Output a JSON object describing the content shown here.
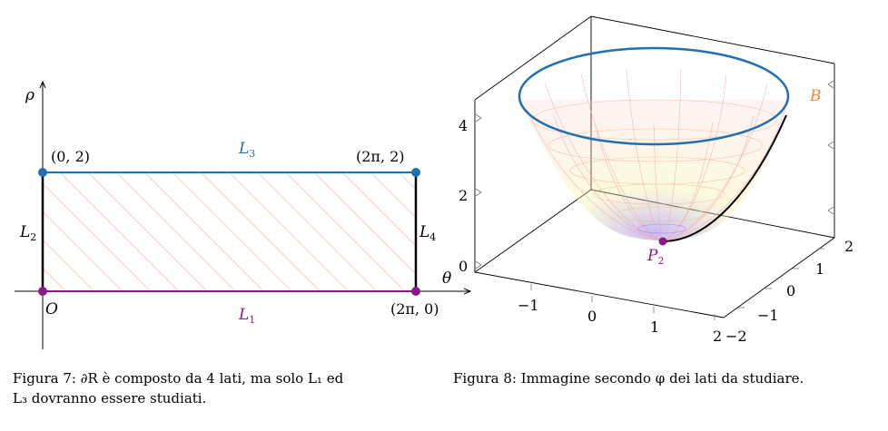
{
  "figure7": {
    "axis_rho": "ρ",
    "axis_theta": "θ",
    "origin": "O",
    "L1": "L",
    "L1_sub": "1",
    "L2": "L",
    "L2_sub": "2",
    "L3": "L",
    "L3_sub": "3",
    "L4": "L",
    "L4_sub": "4",
    "pt_0_2": "(0, 2)",
    "pt_2pi_2": "(2π, 2)",
    "pt_2pi_0": "(2π, 0)",
    "caption_line1": "Figura 7: ∂R è composto da 4 lati, ma solo L₁ ed",
    "caption_line2": "L₃ dovranno essere studiati.",
    "colors": {
      "blue": "#1f6fb2",
      "purple": "#8b1a89",
      "hatch": "#f5a08a"
    }
  },
  "figure8": {
    "label_B": "B",
    "label_P": "P",
    "label_P_sub": "2",
    "z_ticks": [
      "0",
      "2",
      "4"
    ],
    "x_ticks": [
      "−1",
      "0",
      "1",
      "2"
    ],
    "y_ticks": [
      "−2",
      "−1",
      "0",
      "1",
      "2"
    ],
    "caption": "Figura 8: Immagine secondo φ dei lati da studiare.",
    "colors": {
      "blue": "#1f6fb2",
      "orange": "#f0883a",
      "purple": "#8b1a89"
    }
  }
}
